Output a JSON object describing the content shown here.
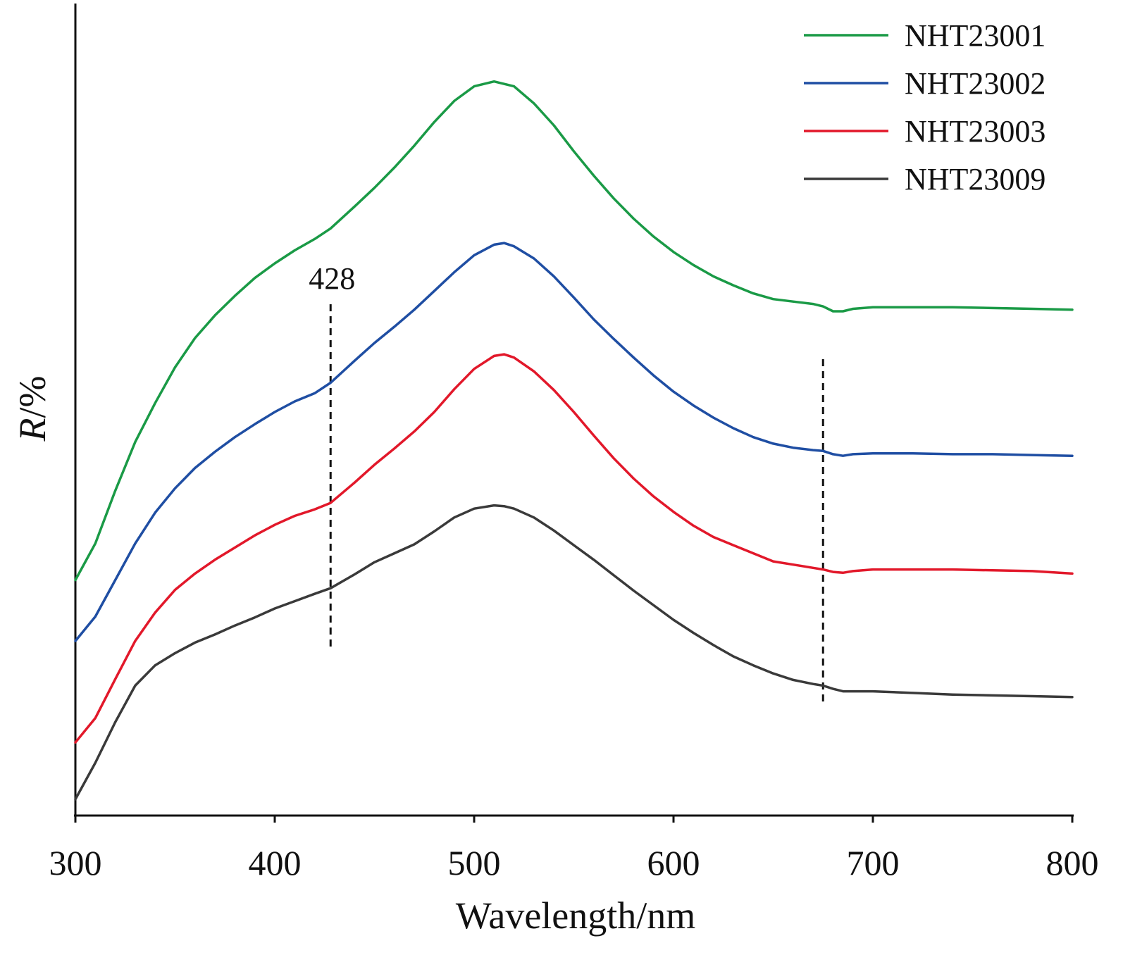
{
  "chart_data": {
    "type": "line",
    "title": "",
    "xlabel": "Wavelength/nm",
    "ylabel_italic": "R",
    "ylabel_unit": "/%",
    "xlim": [
      300,
      800
    ],
    "xticks": [
      300,
      400,
      500,
      600,
      700,
      800
    ],
    "ylim": [
      0,
      100
    ],
    "yaxis_ticks_shown": false,
    "grid": false,
    "legend_position": "top-right",
    "annotations": [
      {
        "x": 428,
        "label": "428",
        "style": "dashed-vertical"
      },
      {
        "x": 675,
        "label": "",
        "style": "dashed-vertical"
      }
    ],
    "series": [
      {
        "name": "NHT23001",
        "color": "#1a9a46",
        "x": [
          300,
          310,
          320,
          330,
          340,
          350,
          360,
          370,
          380,
          390,
          400,
          410,
          420,
          428,
          440,
          450,
          460,
          470,
          480,
          490,
          500,
          510,
          520,
          530,
          540,
          550,
          560,
          570,
          580,
          590,
          600,
          610,
          620,
          630,
          640,
          650,
          660,
          670,
          675,
          680,
          685,
          690,
          700,
          720,
          740,
          760,
          780,
          800
        ],
        "y": [
          29.0,
          33.5,
          40.0,
          46.0,
          50.8,
          55.2,
          58.8,
          61.6,
          64.0,
          66.2,
          68.0,
          69.6,
          71.0,
          72.3,
          75.0,
          77.3,
          79.8,
          82.5,
          85.4,
          88.0,
          89.8,
          90.4,
          89.8,
          87.7,
          85.0,
          81.8,
          78.8,
          76.0,
          73.5,
          71.3,
          69.4,
          67.8,
          66.4,
          65.3,
          64.3,
          63.6,
          63.3,
          63.0,
          62.7,
          62.1,
          62.1,
          62.4,
          62.6,
          62.6,
          62.6,
          62.5,
          62.4,
          62.3
        ]
      },
      {
        "name": "NHT23002",
        "color": "#1f4ea3",
        "x": [
          300,
          310,
          320,
          330,
          340,
          350,
          360,
          370,
          380,
          390,
          400,
          410,
          420,
          428,
          440,
          450,
          460,
          470,
          480,
          490,
          500,
          510,
          515,
          520,
          530,
          540,
          550,
          560,
          570,
          580,
          590,
          600,
          610,
          620,
          630,
          640,
          650,
          660,
          670,
          675,
          680,
          685,
          690,
          700,
          720,
          740,
          760,
          780,
          800
        ],
        "y": [
          21.5,
          24.5,
          29.0,
          33.5,
          37.3,
          40.3,
          42.8,
          44.8,
          46.6,
          48.2,
          49.7,
          51.0,
          52.0,
          53.3,
          56.0,
          58.2,
          60.2,
          62.3,
          64.6,
          66.9,
          69.0,
          70.3,
          70.5,
          70.1,
          68.6,
          66.4,
          63.8,
          61.1,
          58.7,
          56.4,
          54.2,
          52.2,
          50.5,
          49.0,
          47.7,
          46.6,
          45.8,
          45.3,
          45.0,
          44.9,
          44.5,
          44.3,
          44.5,
          44.6,
          44.6,
          44.5,
          44.5,
          44.4,
          44.3
        ]
      },
      {
        "name": "NHT23003",
        "color": "#e2182a",
        "x": [
          300,
          310,
          320,
          330,
          340,
          350,
          360,
          370,
          380,
          390,
          400,
          410,
          420,
          428,
          440,
          450,
          460,
          470,
          480,
          490,
          500,
          510,
          515,
          520,
          530,
          540,
          550,
          560,
          570,
          580,
          590,
          600,
          610,
          620,
          630,
          640,
          650,
          660,
          670,
          675,
          680,
          685,
          690,
          700,
          720,
          740,
          760,
          780,
          800
        ],
        "y": [
          9.0,
          12.0,
          16.8,
          21.5,
          25.0,
          27.8,
          29.8,
          31.5,
          33.0,
          34.5,
          35.8,
          36.9,
          37.7,
          38.5,
          41.0,
          43.2,
          45.2,
          47.3,
          49.7,
          52.5,
          55.0,
          56.6,
          56.8,
          56.4,
          54.7,
          52.4,
          49.7,
          46.8,
          44.0,
          41.5,
          39.3,
          37.4,
          35.7,
          34.3,
          33.3,
          32.3,
          31.3,
          30.9,
          30.5,
          30.3,
          30.0,
          29.9,
          30.1,
          30.3,
          30.3,
          30.3,
          30.2,
          30.1,
          29.8
        ]
      },
      {
        "name": "NHT23009",
        "color": "#3a3a3a",
        "x": [
          300,
          310,
          320,
          330,
          340,
          350,
          360,
          370,
          380,
          390,
          400,
          410,
          420,
          428,
          440,
          450,
          460,
          470,
          480,
          490,
          500,
          510,
          515,
          520,
          530,
          540,
          550,
          560,
          570,
          580,
          590,
          600,
          610,
          620,
          630,
          640,
          650,
          660,
          670,
          675,
          680,
          685,
          690,
          700,
          720,
          740,
          760,
          780,
          800
        ],
        "y": [
          2.0,
          6.5,
          11.5,
          16.0,
          18.5,
          20.0,
          21.3,
          22.3,
          23.4,
          24.4,
          25.5,
          26.4,
          27.3,
          28.0,
          29.7,
          31.2,
          32.3,
          33.4,
          35.0,
          36.7,
          37.8,
          38.2,
          38.1,
          37.8,
          36.7,
          35.1,
          33.3,
          31.5,
          29.6,
          27.7,
          25.9,
          24.1,
          22.5,
          21.0,
          19.6,
          18.5,
          17.5,
          16.7,
          16.2,
          16.0,
          15.6,
          15.3,
          15.3,
          15.3,
          15.1,
          14.9,
          14.8,
          14.7,
          14.6
        ]
      }
    ]
  }
}
